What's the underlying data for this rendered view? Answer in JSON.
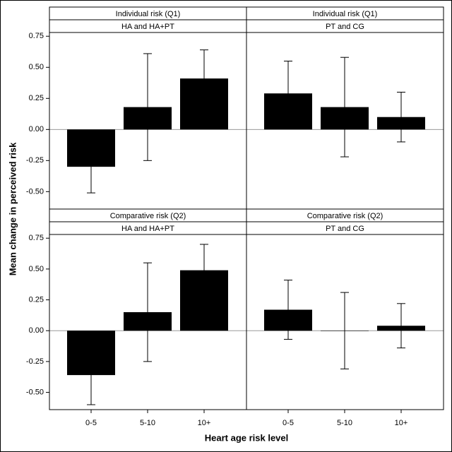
{
  "chart_data": {
    "type": "bar",
    "x_label": "Heart age risk level",
    "y_label": "Mean change in perceived risk",
    "categories": [
      "0-5",
      "5-10",
      "10+"
    ],
    "color": "#000000",
    "ylim": [
      -0.64,
      0.78
    ],
    "yticks": [
      {
        "value": -0.5,
        "label": "-0.50"
      },
      {
        "value": -0.25,
        "label": "-0.25"
      },
      {
        "value": 0,
        "label": "0.00"
      },
      {
        "value": 0.25,
        "label": "0.25"
      },
      {
        "value": 0.5,
        "label": "0.50"
      },
      {
        "value": 0.75,
        "label": "0.75"
      }
    ],
    "facets": [
      {
        "row_label": "Individual risk (Q1)",
        "col_label": "HA and HA+PT",
        "values": [
          -0.3,
          0.18,
          0.41
        ],
        "errors": [
          0.21,
          0.43,
          0.23
        ]
      },
      {
        "row_label": "Individual risk (Q1)",
        "col_label": "PT and CG",
        "values": [
          0.29,
          0.18,
          0.1
        ],
        "errors": [
          0.26,
          0.4,
          0.2
        ]
      },
      {
        "row_label": "Comparative risk (Q2)",
        "col_label": "HA and HA+PT",
        "values": [
          -0.36,
          0.15,
          0.49
        ],
        "errors": [
          0.24,
          0.4,
          0.21
        ]
      },
      {
        "row_label": "Comparative risk (Q2)",
        "col_label": "PT and CG",
        "values": [
          0.17,
          0.0,
          0.04
        ],
        "errors": [
          0.24,
          0.31,
          0.18
        ]
      }
    ]
  }
}
